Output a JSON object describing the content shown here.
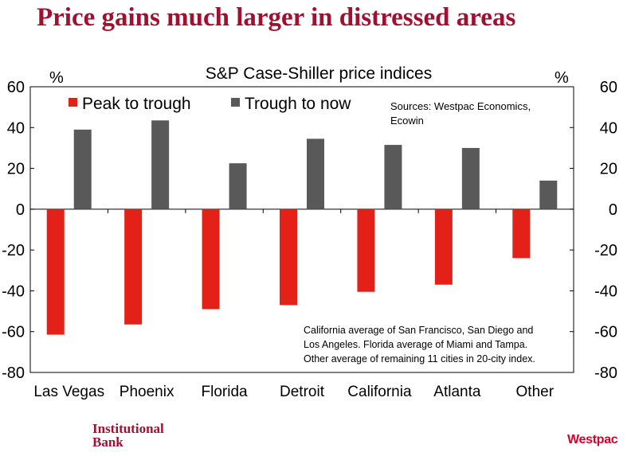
{
  "page": {
    "title": "Price gains much larger in distressed areas",
    "footer_logo_line1": "Institutional",
    "footer_logo_line2": "Bank",
    "footer_brand": "Westpac"
  },
  "chart_data": {
    "type": "bar",
    "title": "S&P Case-Shiller price indices",
    "left_unit": "%",
    "right_unit": "%",
    "categories": [
      "Las Vegas",
      "Phoenix",
      "Florida",
      "Detroit",
      "California",
      "Atlanta",
      "Other"
    ],
    "series": [
      {
        "name": "Peak to trough",
        "color": "#e32119",
        "values": [
          -61.5,
          -56.5,
          -49,
          -47,
          -40.5,
          -37,
          -24
        ]
      },
      {
        "name": "Trough to now",
        "color": "#595959",
        "values": [
          39,
          43.5,
          22.5,
          34.5,
          31.5,
          30,
          14
        ]
      }
    ],
    "ylim": [
      -80,
      60
    ],
    "yticks": [
      60,
      40,
      20,
      0,
      -20,
      -40,
      -60,
      -80
    ],
    "grid": false,
    "legend": "top-left",
    "sources": [
      "Sources: Westpac Economics,",
      "Ecowin"
    ],
    "note": [
      "California average of San Francisco, San Diego and",
      "Los Angeles. Florida average of Miami and Tampa.",
      "Other average of remaining 11 cities in 20-city index."
    ]
  }
}
